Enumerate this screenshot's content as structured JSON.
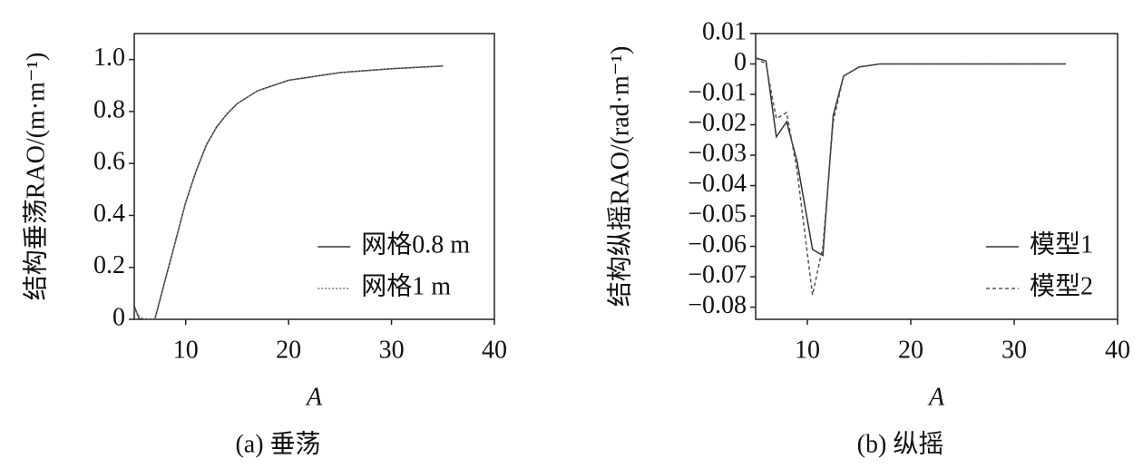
{
  "chart_data": [
    {
      "type": "line",
      "caption": "(a) 垂荡",
      "xlabel": "A",
      "ylabel": "结构垂荡RAO/(m·m⁻¹)",
      "x": [
        5,
        5.5,
        6,
        7,
        8,
        9,
        10,
        11,
        12,
        13,
        14,
        15,
        17,
        20,
        25,
        30,
        35
      ],
      "series": [
        {
          "name": "网格0.8 m",
          "color": "#333333",
          "linestyle": "solid",
          "values": [
            0.05,
            0,
            0,
            0,
            0.15,
            0.3,
            0.45,
            0.57,
            0.67,
            0.74,
            0.79,
            0.83,
            0.88,
            0.92,
            0.95,
            0.965,
            0.975
          ]
        },
        {
          "name": "网格1 m",
          "color": "#777777",
          "linestyle": "dotted",
          "values": [
            0.04,
            0.01,
            0,
            0,
            0.15,
            0.3,
            0.45,
            0.57,
            0.67,
            0.74,
            0.79,
            0.83,
            0.88,
            0.92,
            0.95,
            0.965,
            0.975
          ]
        }
      ],
      "xlim": [
        5,
        40
      ],
      "xticks": [
        10,
        20,
        30,
        40
      ],
      "ylim": [
        0,
        1.1
      ],
      "yticks": [
        0,
        0.2,
        0.4,
        0.6,
        0.8,
        {
          "value": 1,
          "label": "1.0"
        }
      ],
      "legend": "lower right"
    },
    {
      "type": "line",
      "caption": "(b) 纵摇",
      "xlabel": "A",
      "ylabel": "结构纵摇RAO/(rad·m⁻¹)",
      "x": [
        5,
        6,
        7,
        8,
        9,
        10.5,
        11.5,
        12.5,
        13.5,
        15,
        17,
        20,
        25,
        30,
        35
      ],
      "series": [
        {
          "name": "模型1",
          "color": "#333333",
          "linestyle": "solid",
          "values": [
            0.002,
            0.001,
            -0.024,
            -0.019,
            -0.032,
            -0.061,
            -0.063,
            -0.017,
            -0.004,
            -0.001,
            0,
            0,
            0,
            0,
            0
          ]
        },
        {
          "name": "模型2",
          "color": "#555555",
          "linestyle": "dashed",
          "values": [
            0.002,
            0,
            -0.018,
            -0.016,
            -0.035,
            -0.076,
            -0.06,
            -0.019,
            -0.004,
            -0.001,
            0,
            0,
            0,
            0,
            0
          ]
        }
      ],
      "xlim": [
        5,
        40
      ],
      "xticks": [
        10,
        20,
        30,
        40
      ],
      "ylim": [
        -0.084,
        0.01
      ],
      "yticks": [
        0.01,
        0,
        {
          "value": -0.01,
          "label": "−0.01"
        },
        {
          "value": -0.02,
          "label": "−0.02"
        },
        {
          "value": -0.03,
          "label": "−0.03"
        },
        {
          "value": -0.04,
          "label": "−0.04"
        },
        {
          "value": -0.05,
          "label": "−0.05"
        },
        {
          "value": -0.06,
          "label": "−0.06"
        },
        {
          "value": -0.07,
          "label": "−0.07"
        },
        {
          "value": -0.08,
          "label": "−0.08"
        }
      ],
      "legend": "lower right"
    }
  ]
}
